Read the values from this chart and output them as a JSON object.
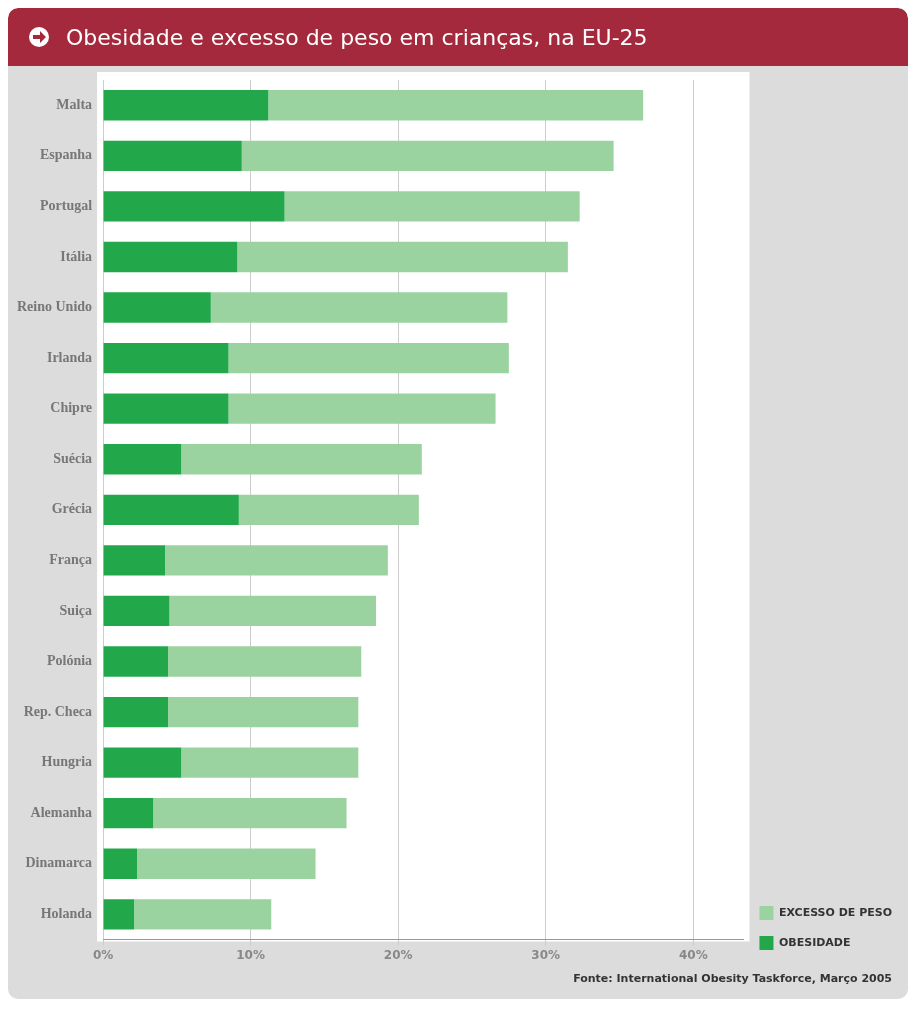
{
  "chart_data": {
    "type": "bar",
    "orientation": "horizontal",
    "stacked": true,
    "title": "Obesidade e excesso de peso em crianças, na EU-25",
    "categories": [
      "Malta",
      "Espanha",
      "Portugal",
      "Itália",
      "Reino Unido",
      "Irlanda",
      "Chipre",
      "Suécia",
      "Grécia",
      "França",
      "Suiça",
      "Polónia",
      "Rep. Checa",
      "Hungria",
      "Alemanha",
      "Dinamarca",
      "Holanda"
    ],
    "series": [
      {
        "name": "OBESIDADE",
        "color": "#22a84a",
        "values": [
          11.2,
          9.4,
          12.3,
          9.1,
          7.3,
          8.5,
          8.5,
          5.3,
          9.2,
          4.2,
          4.5,
          4.4,
          4.4,
          5.3,
          3.4,
          2.3,
          2.1
        ]
      },
      {
        "name": "EXCESSO DE PESO",
        "color": "#9bd3a0",
        "values": [
          25.4,
          25.2,
          20.0,
          22.4,
          20.1,
          19.0,
          18.1,
          16.3,
          12.2,
          15.1,
          14.0,
          13.1,
          12.9,
          12.0,
          13.1,
          12.1,
          9.3
        ]
      }
    ],
    "xlim": [
      0,
      43.4
    ],
    "xticks": [
      {
        "value": 0,
        "label": "0%"
      },
      {
        "value": 10,
        "label": "10%"
      },
      {
        "value": 20,
        "label": "20%"
      },
      {
        "value": 30,
        "label": "30%"
      },
      {
        "value": 40,
        "label": "40%"
      }
    ],
    "grid": "x",
    "legend": "bottom right",
    "annotations": [
      "Fonte: International Obesity Taskforce, Março 2005"
    ]
  }
}
